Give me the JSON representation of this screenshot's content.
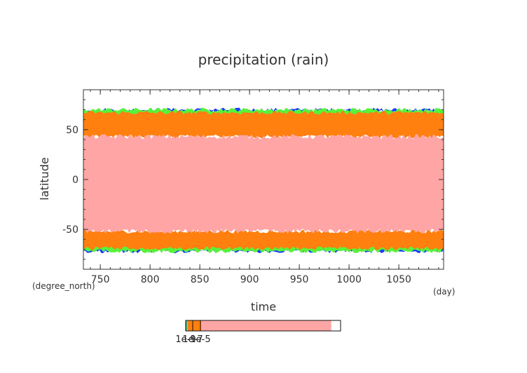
{
  "chart_data": {
    "type": "heatmap",
    "title": "precipitation (rain)",
    "xlabel": "time",
    "ylabel": "latitude",
    "x_unit": "(day)",
    "y_unit": "(degree_north)",
    "xlim": [
      733,
      1095
    ],
    "ylim": [
      -90,
      90
    ],
    "x_ticks": [
      750,
      800,
      850,
      900,
      950,
      1000,
      1050
    ],
    "y_ticks": [
      -50,
      0,
      50
    ],
    "bands": [
      {
        "level": "light pink (heaviest)",
        "color": "#ffa5a5",
        "lat_from": -52,
        "lat_to": 43
      },
      {
        "level": "orange",
        "color": "#ff7f0f",
        "lat_from": -69,
        "lat_to": -52
      },
      {
        "level": "orange",
        "color": "#ff7f0f",
        "lat_from": 43,
        "lat_to": 67
      },
      {
        "level": "green",
        "color": "#58f23c",
        "lat_from": -72,
        "lat_to": -63
      },
      {
        "level": "green",
        "color": "#58f23c",
        "lat_from": 62,
        "lat_to": 70
      },
      {
        "level": "blue",
        "color": "#1a3cff",
        "lat_from": -72,
        "lat_to": -70
      },
      {
        "level": "blue",
        "color": "#1a3cff",
        "lat_from": 68,
        "lat_to": 70
      }
    ],
    "colorbar": {
      "labels": [
        "1e-9",
        "1e-7",
        "1e-5"
      ],
      "segments": [
        {
          "color": "#1a3cff",
          "frac": 0.005
        },
        {
          "color": "#58f23c",
          "frac": 0.005
        },
        {
          "color": "#ff7f0f",
          "frac": 0.09
        },
        {
          "color": "#ffa5a5",
          "frac": 0.84
        },
        {
          "color": "#ffffff",
          "frac": 0.06
        }
      ]
    },
    "grid": false,
    "legend": "colorbar bottom-center"
  }
}
